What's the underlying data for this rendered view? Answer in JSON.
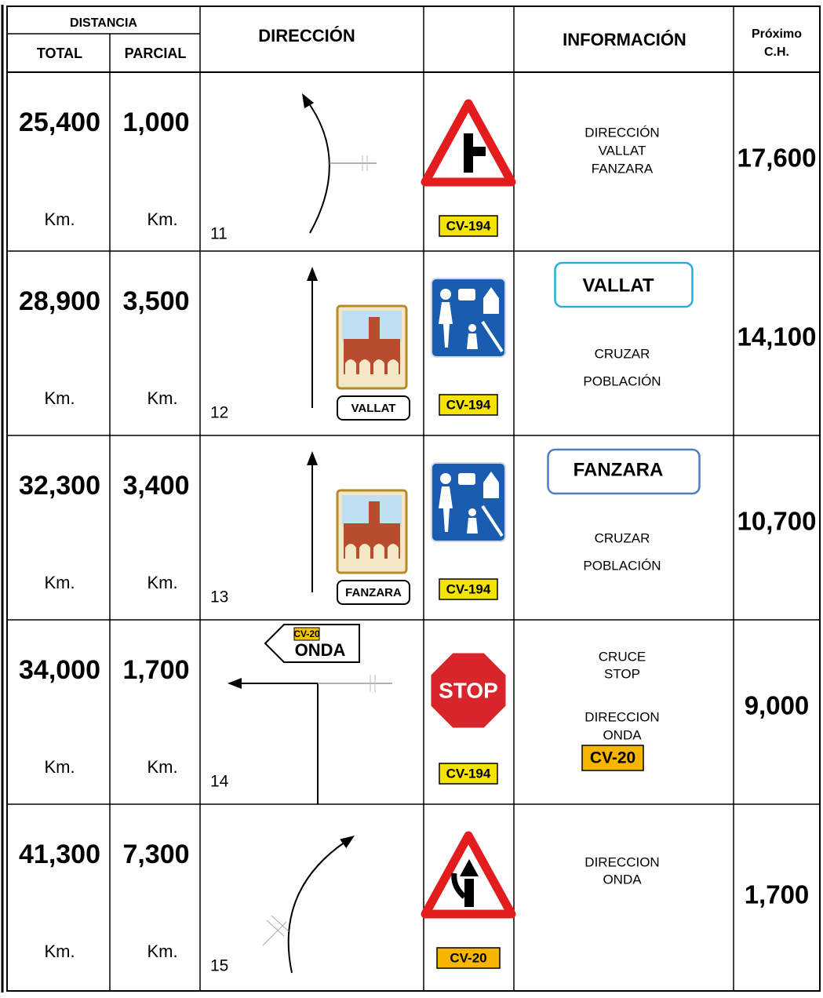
{
  "header": {
    "distancia": "DISTANCIA",
    "total": "TOTAL",
    "parcial": "PARCIAL",
    "direccion": "DIRECCIÓN",
    "informacion": "INFORMACIÓN",
    "proximo": "Próximo",
    "ch": "C.H."
  },
  "rows": [
    {
      "total": "25,400",
      "total_unit": "Km.",
      "parcial": "1,000",
      "parcial_unit": "Km.",
      "step": "11",
      "road": "CV-194",
      "info": [
        "DIRECCIÓN",
        "VALLAT",
        "FANZARA"
      ],
      "next": "17,600"
    },
    {
      "total": "28,900",
      "total_unit": "Km.",
      "parcial": "3,500",
      "parcial_unit": "Km.",
      "step": "12",
      "town_plate": "VALLAT",
      "road": "CV-194",
      "info_box": "VALLAT",
      "info": [
        "CRUZAR",
        "POBLACIÓN"
      ],
      "next": "14,100"
    },
    {
      "total": "32,300",
      "total_unit": "Km.",
      "parcial": "3,400",
      "parcial_unit": "Km.",
      "step": "13",
      "town_plate": "FANZARA",
      "road": "CV-194",
      "info_box": "FANZARA",
      "info": [
        "CRUZAR",
        "POBLACIÓN"
      ],
      "next": "10,700"
    },
    {
      "total": "34,000",
      "total_unit": "Km.",
      "parcial": "1,700",
      "parcial_unit": "Km.",
      "step": "14",
      "direction_sign": {
        "road": "CV-20",
        "town": "ONDA"
      },
      "sign_text": "STOP",
      "road": "CV-194",
      "info": [
        "CRUCE",
        "STOP",
        "DIRECCION",
        "ONDA"
      ],
      "info_road": "CV-20",
      "next": "9,000"
    },
    {
      "total": "41,300",
      "total_unit": "Km.",
      "parcial": "7,300",
      "parcial_unit": "Km.",
      "step": "15",
      "road": "CV-20",
      "info": [
        "DIRECCION",
        "ONDA"
      ],
      "next": "1,700"
    }
  ]
}
